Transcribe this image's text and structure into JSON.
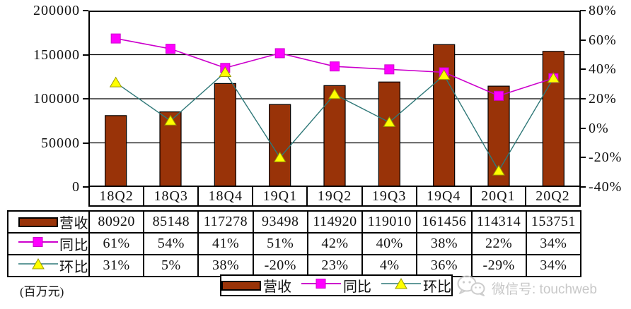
{
  "chart_data": {
    "type": "bar+line",
    "categories": [
      "18Q2",
      "18Q3",
      "18Q4",
      "19Q1",
      "19Q2",
      "19Q3",
      "19Q4",
      "20Q1",
      "20Q2"
    ],
    "series": [
      {
        "name": "营收",
        "type": "bar",
        "axis": "left",
        "values": [
          80920,
          85148,
          117278,
          93498,
          114920,
          119010,
          161456,
          114314,
          153751
        ]
      },
      {
        "name": "同比",
        "type": "line",
        "axis": "right",
        "marker": "square",
        "values": [
          61,
          54,
          41,
          51,
          42,
          40,
          38,
          22,
          34
        ]
      },
      {
        "name": "环比",
        "type": "line",
        "axis": "right",
        "marker": "triangle",
        "values": [
          31,
          5,
          38,
          -20,
          23,
          4,
          36,
          -29,
          34
        ]
      }
    ],
    "left_axis": {
      "min": 0,
      "max": 200000,
      "ticks": [
        "200000",
        "150000",
        "100000",
        "50000",
        "0"
      ]
    },
    "right_axis": {
      "min": -40,
      "max": 80,
      "ticks": [
        "80%",
        "60%",
        "40%",
        "20%",
        "0%",
        "-20%",
        "-40%"
      ]
    },
    "grid": "horizontal",
    "legend_position": "bottom"
  },
  "table": {
    "row_labels": [
      "营收",
      "同比",
      "环比"
    ],
    "rows": [
      [
        "80920",
        "85148",
        "117278",
        "93498",
        "114920",
        "119010",
        "161456",
        "114314",
        "153751"
      ],
      [
        "61%",
        "54%",
        "41%",
        "51%",
        "42%",
        "40%",
        "38%",
        "22%",
        "34%"
      ],
      [
        "31%",
        "5%",
        "38%",
        "-20%",
        "23%",
        "4%",
        "36%",
        "-29%",
        "34%"
      ]
    ]
  },
  "footer": {
    "unit_label": "(百万元)",
    "legend": {
      "revenue": "营收",
      "yoy": "同比",
      "qoq": "环比"
    },
    "watermark": "微信号: touchweb"
  },
  "colors": {
    "bar": "#993308",
    "bar_border": "#000000",
    "yoy_line": "#cc00cc",
    "yoy_marker": "#ff00ff",
    "qoq_line": "#2f7878",
    "qoq_marker": "#ffff00",
    "qoq_marker_border": "#9a9a00",
    "grid": "#000000",
    "watermark_gray": "#c8c8c8"
  }
}
